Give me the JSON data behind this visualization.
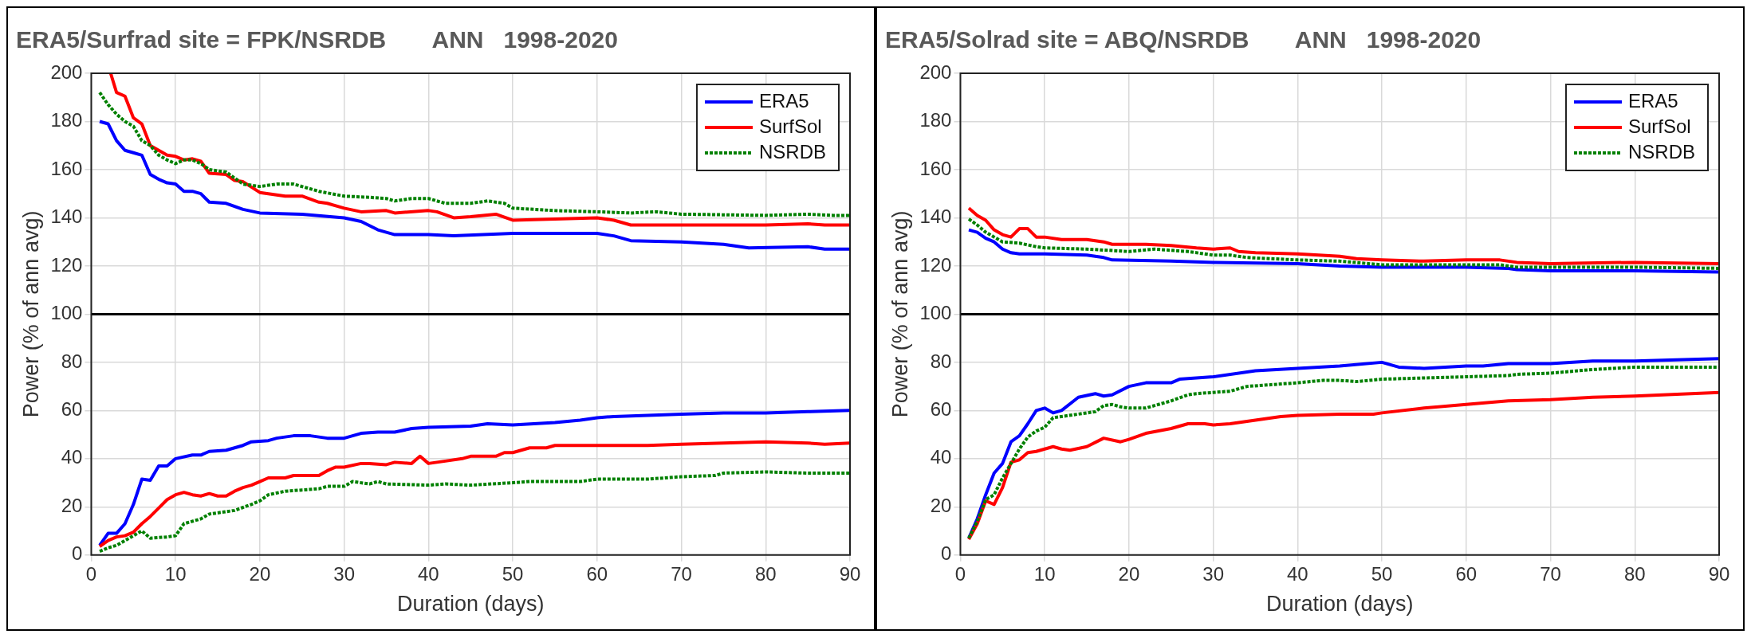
{
  "chart_data": [
    {
      "type": "line",
      "title": "ERA5/Surfrad site = FPK/NSRDB       ANN   1998-2020",
      "xlabel": "Duration (days)",
      "ylabel": "Power (% of ann avg)",
      "xlim": [
        0,
        90
      ],
      "xticks": [
        0,
        10,
        20,
        30,
        40,
        50,
        60,
        70,
        80,
        90
      ],
      "ylim": [
        0,
        200
      ],
      "yticks": [
        0,
        20,
        40,
        60,
        80,
        100,
        120,
        140,
        160,
        180,
        200
      ],
      "grid": true,
      "legend": "top right",
      "marker": "none",
      "ref_lines": [
        {
          "axis": "y",
          "value": 100,
          "color": "#000000"
        }
      ],
      "series": [
        {
          "name": "ERA5",
          "color": "#0000ff",
          "line_style": "solid",
          "x": [
            1,
            2,
            3,
            4,
            5,
            6,
            7,
            8,
            9,
            10,
            11,
            12,
            13,
            14,
            16,
            18,
            20,
            25,
            30,
            32,
            34,
            36,
            40,
            43,
            50,
            55,
            60,
            62,
            64,
            70,
            75,
            78,
            85,
            87,
            90
          ],
          "values": [
            180,
            179,
            172,
            168,
            167,
            166,
            158,
            156,
            154.5,
            154,
            151,
            151,
            150,
            146.5,
            146,
            143.5,
            142,
            141.5,
            140,
            138.5,
            135,
            133,
            133,
            132.5,
            133.5,
            133.5,
            133.5,
            132.5,
            130.5,
            130,
            129,
            127.5,
            128,
            127,
            127
          ]
        },
        {
          "color": "#0000ff",
          "line_style": "solid",
          "x": [
            1,
            2,
            3,
            4,
            5,
            6,
            7,
            8,
            9,
            10,
            12,
            13,
            14,
            16,
            18,
            19,
            21,
            22,
            24,
            26,
            28,
            30,
            32,
            34,
            36,
            38,
            40,
            45,
            47,
            50,
            55,
            58,
            60,
            62,
            66,
            70,
            75,
            80,
            85,
            90
          ],
          "values": [
            4,
            9,
            9,
            13,
            21,
            31.5,
            31,
            37,
            37,
            40,
            41.5,
            41.5,
            43,
            43.5,
            45.5,
            47,
            47.5,
            48.5,
            49.5,
            49.5,
            48.5,
            48.5,
            50.5,
            51,
            51,
            52.5,
            53,
            53.5,
            54.5,
            54,
            55,
            56,
            57,
            57.5,
            58,
            58.5,
            59,
            59,
            59.5,
            60
          ]
        },
        {
          "name": "SurfSol",
          "color": "#ff0000",
          "line_style": "solid",
          "x": [
            2.3,
            3,
            4,
            5,
            6,
            7,
            8,
            9,
            10,
            11,
            12,
            13,
            14,
            16,
            17,
            18,
            20,
            21,
            23,
            25,
            27,
            28,
            30,
            32,
            35,
            36,
            40,
            41,
            43,
            45,
            48,
            50,
            55,
            60,
            62,
            64,
            70,
            75,
            80,
            85,
            87,
            90
          ],
          "values": [
            200,
            192,
            190.5,
            181.5,
            179,
            170,
            168,
            166,
            165.5,
            164,
            164.5,
            163.5,
            158.5,
            158,
            155.5,
            155,
            150.5,
            150,
            149,
            149,
            146.5,
            146,
            144,
            142.5,
            143,
            142,
            143,
            142.5,
            140,
            140.5,
            141.5,
            139,
            139.5,
            140,
            139,
            137,
            137,
            137,
            137,
            137.5,
            137,
            137
          ]
        },
        {
          "color": "#ff0000",
          "line_style": "solid",
          "x": [
            1,
            2,
            3,
            4,
            5,
            6,
            7,
            8,
            9,
            10,
            11,
            12,
            13,
            14,
            15,
            16,
            17,
            18,
            19,
            20,
            21,
            23,
            24,
            27,
            28,
            29,
            30,
            32,
            33,
            35,
            36,
            38,
            39,
            40,
            42,
            44,
            45,
            48,
            49,
            50,
            52,
            54,
            55,
            60,
            66,
            70,
            75,
            80,
            85,
            87,
            90
          ],
          "values": [
            3.5,
            6,
            7.5,
            8,
            9.5,
            13,
            16,
            19.5,
            23,
            25,
            26,
            25,
            24.5,
            25.5,
            24.5,
            24.5,
            26.5,
            28,
            29,
            30.5,
            32,
            32,
            33,
            33,
            35,
            36.5,
            36.5,
            38,
            38,
            37.5,
            38.5,
            38,
            41,
            38,
            39,
            40,
            41,
            41,
            42.5,
            42.5,
            44.5,
            44.5,
            45.5,
            45.5,
            45.5,
            46,
            46.5,
            47,
            46.5,
            46,
            46.5
          ]
        },
        {
          "name": "NSRDB",
          "color": "#008000",
          "line_style": "dotted",
          "x": [
            1,
            2,
            3,
            4,
            5,
            6,
            7,
            8,
            9,
            10,
            11,
            12,
            13,
            14,
            16,
            18,
            20,
            22,
            24,
            27,
            30,
            33,
            35,
            36,
            38,
            40,
            42,
            45,
            47,
            49,
            50,
            55,
            60,
            64,
            67,
            70,
            80,
            85,
            88,
            90
          ],
          "values": [
            192,
            187,
            183,
            180,
            178,
            172,
            170,
            166,
            164,
            162.5,
            164,
            164,
            162.5,
            160,
            159,
            154,
            153,
            154,
            154,
            151,
            149,
            148.5,
            148,
            147,
            148,
            148,
            146,
            146,
            147,
            146,
            144,
            143,
            142.5,
            142,
            142.5,
            141.5,
            141,
            141.5,
            141,
            141
          ]
        },
        {
          "color": "#008000",
          "line_style": "dotted",
          "x": [
            1,
            2,
            3,
            4,
            5,
            6,
            7,
            9,
            10,
            11,
            13,
            14,
            16,
            17,
            19,
            20,
            21,
            23,
            25,
            27,
            28,
            30,
            31,
            33,
            34,
            35,
            40,
            42,
            45,
            50,
            52,
            55,
            58,
            60,
            66,
            70,
            74,
            75,
            80,
            85,
            90
          ],
          "values": [
            1.5,
            3,
            4,
            6,
            8,
            10,
            7,
            7.5,
            8,
            13,
            15,
            17,
            18,
            18.5,
            21,
            22.5,
            25,
            26.5,
            27,
            27.5,
            28.5,
            28.5,
            30.5,
            29.5,
            30.5,
            29.5,
            29,
            29.5,
            29,
            30,
            30.5,
            30.5,
            30.5,
            31.5,
            31.5,
            32.5,
            33,
            34,
            34.5,
            34,
            34
          ]
        }
      ]
    },
    {
      "type": "line",
      "title": "ERA5/Solrad site = ABQ/NSRDB       ANN   1998-2020",
      "xlabel": "Duration (days)",
      "ylabel": "Power (% of ann avg)",
      "xlim": [
        0,
        90
      ],
      "xticks": [
        0,
        10,
        20,
        30,
        40,
        50,
        60,
        70,
        80,
        90
      ],
      "ylim": [
        0,
        200
      ],
      "yticks": [
        0,
        20,
        40,
        60,
        80,
        100,
        120,
        140,
        160,
        180,
        200
      ],
      "grid": true,
      "legend": "top right",
      "marker": "none",
      "ref_lines": [
        {
          "axis": "y",
          "value": 100,
          "color": "#000000"
        }
      ],
      "series": [
        {
          "name": "ERA5",
          "color": "#0000ff",
          "line_style": "solid",
          "x": [
            1,
            2,
            3,
            4,
            5,
            6,
            7,
            10,
            15,
            17,
            18,
            25,
            30,
            40,
            45,
            50,
            55,
            60,
            65,
            66,
            70,
            80,
            90
          ],
          "values": [
            135,
            134,
            131.5,
            130,
            127,
            125.5,
            125,
            125,
            124.5,
            123.5,
            122.5,
            122,
            121.5,
            121,
            120,
            119.5,
            119.5,
            119.5,
            119,
            118.5,
            118,
            118,
            117.5
          ]
        },
        {
          "color": "#0000ff",
          "line_style": "solid",
          "x": [
            1,
            2,
            3,
            4,
            5,
            6,
            7,
            8,
            9,
            10,
            11,
            12,
            14,
            16,
            17,
            18,
            20,
            22,
            25,
            26,
            30,
            35,
            40,
            45,
            50,
            52,
            55,
            60,
            62,
            65,
            70,
            75,
            80,
            85,
            90
          ],
          "values": [
            7,
            15,
            25,
            34,
            38,
            47,
            49.5,
            54.5,
            60,
            61,
            59,
            60,
            65.5,
            67,
            66,
            66.5,
            70,
            71.5,
            71.5,
            73,
            74,
            76.5,
            77.5,
            78.5,
            80,
            78,
            77.5,
            78.5,
            78.5,
            79.5,
            79.5,
            80.5,
            80.5,
            81,
            81.5
          ]
        },
        {
          "name": "SurfSol",
          "color": "#ff0000",
          "line_style": "solid",
          "x": [
            1,
            2,
            3,
            4,
            5,
            6,
            7,
            8,
            9,
            10,
            12,
            15,
            17,
            18,
            22,
            25,
            28,
            30,
            32,
            33,
            35,
            40,
            45,
            47,
            50,
            55,
            60,
            64,
            66,
            70,
            80,
            90
          ],
          "values": [
            144,
            141,
            139,
            135,
            133,
            132,
            135.5,
            135.5,
            132,
            132,
            131,
            131,
            130,
            129,
            129,
            128.5,
            127.5,
            127,
            127.5,
            126,
            125.5,
            125,
            124,
            123,
            122.5,
            122,
            122.5,
            122.5,
            121.5,
            121,
            121.5,
            121
          ]
        },
        {
          "color": "#ff0000",
          "line_style": "solid",
          "x": [
            1,
            2,
            3,
            4,
            5,
            6,
            7,
            8,
            9,
            11,
            12,
            13,
            15,
            17,
            19,
            20,
            22,
            25,
            27,
            29,
            30,
            32,
            35,
            38,
            40,
            45,
            49,
            50,
            55,
            60,
            65,
            70,
            75,
            80,
            90
          ],
          "values": [
            6.5,
            13,
            22.5,
            21,
            28,
            38.5,
            39.5,
            42.5,
            43,
            45,
            44,
            43.5,
            45,
            48.5,
            47,
            48,
            50.5,
            52.5,
            54.5,
            54.5,
            54,
            54.5,
            56,
            57.5,
            58,
            58.5,
            58.5,
            59,
            61,
            62.5,
            64,
            64.5,
            65.5,
            66,
            67.5
          ]
        },
        {
          "name": "NSRDB",
          "color": "#008000",
          "line_style": "dotted",
          "x": [
            1,
            2,
            3,
            4,
            5,
            7,
            9,
            10,
            15,
            20,
            23,
            27,
            30,
            32,
            34,
            40,
            45,
            50,
            55,
            60,
            64,
            66,
            70,
            80,
            90
          ],
          "values": [
            139.5,
            137,
            134,
            132,
            130,
            129.5,
            128,
            127.5,
            127,
            126,
            127,
            126,
            124.5,
            124.5,
            123.5,
            122.5,
            122,
            120.5,
            120.5,
            120.5,
            120.5,
            119.5,
            119.5,
            119.5,
            119
          ]
        },
        {
          "color": "#008000",
          "line_style": "dotted",
          "x": [
            1,
            2,
            3,
            4,
            5,
            6,
            7,
            8,
            9,
            10,
            11,
            12,
            15,
            16,
            17,
            18,
            19,
            20,
            22,
            25,
            27,
            28,
            32,
            34,
            40,
            43,
            45,
            47,
            50,
            55,
            60,
            65,
            66,
            70,
            75,
            80,
            85,
            90
          ],
          "values": [
            7,
            14,
            23,
            25,
            32,
            38,
            44,
            49,
            51.5,
            53,
            57,
            57.5,
            59,
            59.5,
            62,
            62.5,
            61.5,
            61,
            61,
            64,
            66.5,
            67,
            68,
            70,
            71.5,
            72.5,
            72.5,
            72,
            73,
            73.5,
            74,
            74.5,
            75,
            75.5,
            77,
            78,
            78,
            78
          ]
        }
      ]
    }
  ]
}
